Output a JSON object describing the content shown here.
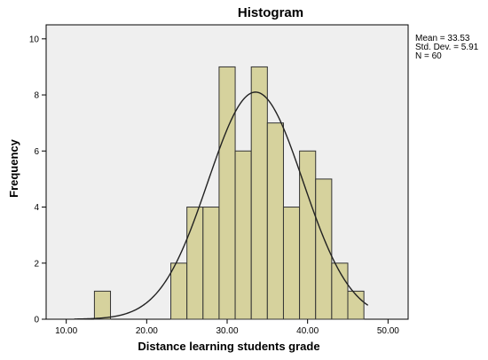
{
  "chart_data": {
    "type": "bar",
    "title": "Histogram",
    "xlabel": "Distance learning students grade",
    "ylabel": "Frequency",
    "xlim": [
      7.5,
      52.5
    ],
    "ylim": [
      0,
      10.5
    ],
    "x_ticks": [
      "10.00",
      "20.00",
      "30.00",
      "40.00",
      "50.00"
    ],
    "x_tick_values": [
      10,
      20,
      30,
      40,
      50
    ],
    "y_ticks": [
      "0",
      "2",
      "4",
      "6",
      "8",
      "10"
    ],
    "y_tick_values": [
      0,
      2,
      4,
      6,
      8,
      10
    ],
    "bins": [
      {
        "start": 13.5,
        "end": 15.5,
        "count": 1
      },
      {
        "start": 23.0,
        "end": 25.0,
        "count": 2
      },
      {
        "start": 25.0,
        "end": 27.0,
        "count": 4
      },
      {
        "start": 27.0,
        "end": 29.0,
        "count": 4
      },
      {
        "start": 29.0,
        "end": 31.0,
        "count": 9
      },
      {
        "start": 31.0,
        "end": 33.0,
        "count": 6
      },
      {
        "start": 33.0,
        "end": 35.0,
        "count": 9
      },
      {
        "start": 35.0,
        "end": 37.0,
        "count": 7
      },
      {
        "start": 37.0,
        "end": 39.0,
        "count": 4
      },
      {
        "start": 39.0,
        "end": 41.0,
        "count": 6
      },
      {
        "start": 41.0,
        "end": 43.0,
        "count": 5
      },
      {
        "start": 43.0,
        "end": 45.0,
        "count": 2
      },
      {
        "start": 45.0,
        "end": 47.0,
        "count": 1
      }
    ],
    "normal_curve": {
      "mean": 33.53,
      "std": 5.91,
      "n": 60,
      "bin_width": 2
    },
    "stats": [
      "Mean = 33.53",
      "Std. Dev. = 5.91",
      "N = 60"
    ],
    "grid": false,
    "colors": {
      "bar_fill": "#d6d29d",
      "bar_stroke": "#333333",
      "plot_bg": "#efefef",
      "curve": "#222222"
    }
  }
}
